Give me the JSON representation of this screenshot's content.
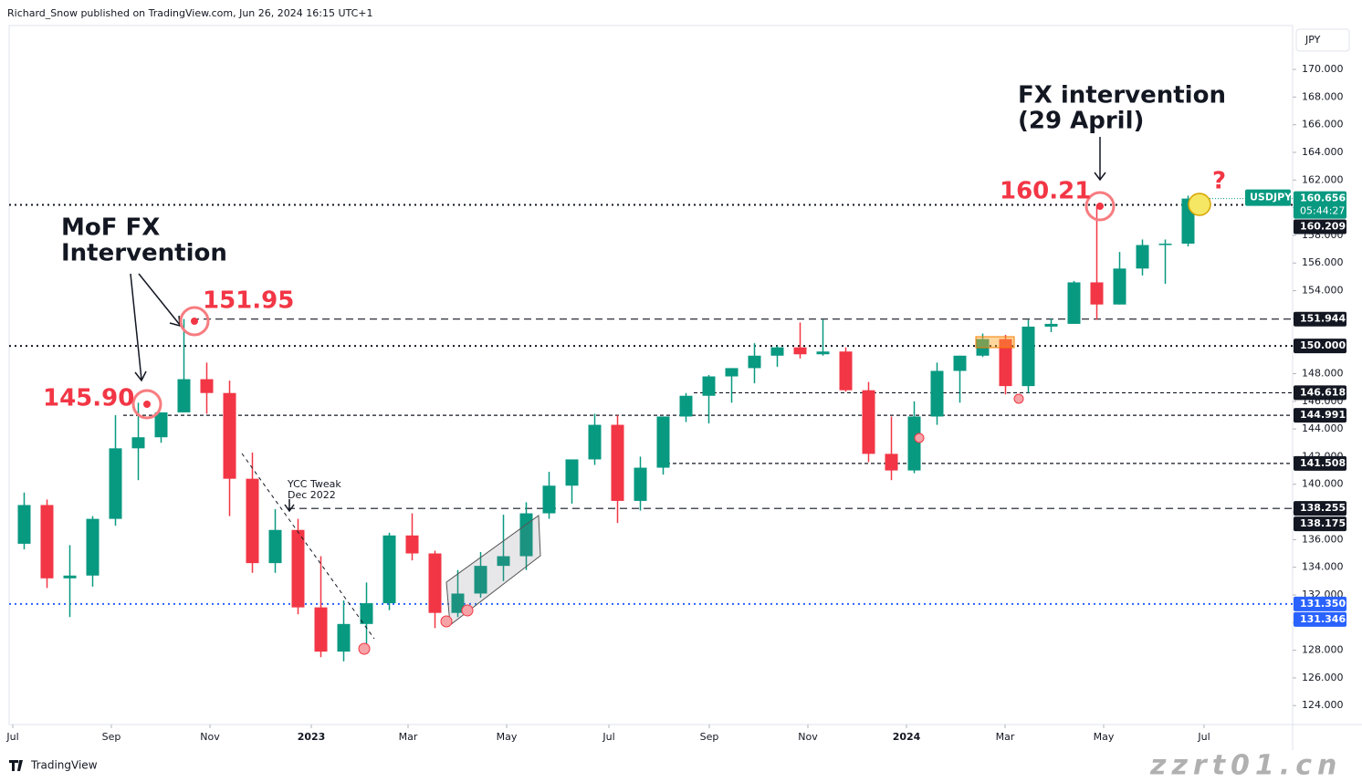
{
  "header": "Richard_Snow published on TradingView.com, Jun 26, 2024 16:15 UTC+1",
  "currency": "JPY",
  "footer_brand": "TradingView",
  "watermark": "zzrt01.cn",
  "chart_data": {
    "type": "candlestick",
    "symbol": "USDJPY",
    "up_color": "#089981",
    "down_color": "#f23645",
    "open": [
      135.7,
      138.5,
      133.2,
      133.4,
      137.5,
      142.6,
      143.4,
      145.2,
      147.6,
      146.6,
      140.4,
      134.3,
      136.7,
      131.1,
      127.9,
      129.9,
      131.4,
      136.3,
      135.0,
      130.7,
      132.1,
      134.1,
      134.8,
      137.9,
      139.9,
      141.8,
      144.3,
      138.8,
      141.2,
      144.9,
      146.4,
      147.8,
      148.4,
      149.3,
      149.9,
      149.4,
      149.6,
      146.8,
      142.2,
      141.0,
      144.9,
      148.2,
      149.3,
      150.5,
      147.1,
      151.4,
      151.6,
      154.6,
      153.0,
      155.6,
      157.3,
      157.4
    ],
    "high": [
      139.4,
      138.9,
      135.6,
      137.7,
      145.0,
      145.9,
      145.0,
      151.95,
      148.8,
      147.5,
      142.3,
      138.2,
      137.5,
      134.8,
      131.6,
      132.9,
      136.5,
      137.9,
      135.2,
      133.8,
      135.1,
      137.8,
      138.7,
      140.9,
      141.5,
      145.1,
      145.0,
      142.0,
      144.9,
      146.6,
      147.9,
      148.4,
      150.2,
      150.0,
      151.7,
      151.9,
      149.9,
      147.4,
      144.9,
      146.0,
      148.8,
      149.3,
      150.9,
      150.8,
      151.9,
      151.97,
      154.7,
      160.21,
      156.8,
      157.7,
      157.7,
      160.87
    ],
    "low": [
      135.3,
      132.5,
      130.4,
      132.6,
      137.0,
      140.3,
      143.0,
      145.2,
      145.1,
      137.7,
      133.6,
      133.6,
      130.6,
      127.5,
      127.2,
      128.1,
      130.9,
      134.5,
      129.6,
      130.4,
      131.8,
      133.0,
      133.8,
      137.5,
      138.6,
      141.4,
      137.2,
      138.1,
      140.7,
      144.5,
      144.4,
      145.9,
      147.3,
      148.5,
      149.1,
      149.3,
      146.7,
      141.6,
      140.3,
      140.8,
      144.3,
      145.9,
      149.2,
      146.5,
      146.6,
      151.0,
      151.6,
      151.9,
      153.0,
      155.1,
      154.5,
      157.2
    ],
    "close": [
      138.5,
      133.2,
      133.4,
      137.5,
      142.6,
      143.4,
      145.2,
      147.6,
      146.6,
      140.4,
      134.3,
      136.7,
      131.1,
      127.9,
      129.9,
      131.4,
      136.3,
      135.0,
      130.7,
      132.1,
      134.1,
      134.8,
      137.9,
      139.9,
      141.8,
      144.3,
      138.8,
      141.2,
      144.9,
      146.4,
      147.8,
      148.4,
      149.3,
      149.9,
      149.4,
      149.6,
      146.8,
      142.2,
      141.0,
      144.9,
      148.2,
      149.3,
      150.5,
      147.1,
      151.4,
      151.6,
      154.6,
      153.0,
      155.6,
      157.3,
      157.4,
      160.66
    ],
    "xlim": [
      -0.16,
      56.08
    ],
    "xticks": [
      {
        "value": 0,
        "label": "Jul"
      },
      {
        "value": 4.32,
        "label": "Sep"
      },
      {
        "value": 8.64,
        "label": "Nov"
      },
      {
        "value": 13.08,
        "label": "2023"
      },
      {
        "value": 17.32,
        "label": "Mar"
      },
      {
        "value": 21.64,
        "label": "May"
      },
      {
        "value": 26.12,
        "label": "Jul"
      },
      {
        "value": 30.52,
        "label": "Sep"
      },
      {
        "value": 34.84,
        "label": "Nov"
      },
      {
        "value": 39.16,
        "label": "2024"
      },
      {
        "value": 43.48,
        "label": "Mar"
      },
      {
        "value": 47.8,
        "label": "May"
      },
      {
        "value": 52.2,
        "label": "Jul"
      }
    ],
    "ylim": [
      122.63,
      173.17
    ],
    "yticks": [
      {
        "value": 124,
        "label": "124.000"
      },
      {
        "value": 126,
        "label": "126.000"
      },
      {
        "value": 128,
        "label": "128.000"
      },
      {
        "value": 130,
        "label": "130.000"
      },
      {
        "value": 132,
        "label": "132.000"
      },
      {
        "value": 134,
        "label": "134.000"
      },
      {
        "value": 136,
        "label": "136.000"
      },
      {
        "value": 138,
        "label": "138.000"
      },
      {
        "value": 140,
        "label": "140.000"
      },
      {
        "value": 142,
        "label": "142.000"
      },
      {
        "value": 144,
        "label": "144.000"
      },
      {
        "value": 146,
        "label": "146.000"
      },
      {
        "value": 148,
        "label": "148.000"
      },
      {
        "value": 150,
        "label": "150.000"
      },
      {
        "value": 152,
        "label": "152.000"
      },
      {
        "value": 154,
        "label": "154.000"
      },
      {
        "value": 156,
        "label": "156.000"
      },
      {
        "value": 158,
        "label": "158.000"
      },
      {
        "value": 160,
        "label": "160.000"
      },
      {
        "value": 162,
        "label": "162.000"
      },
      {
        "value": 164,
        "label": "164.000"
      },
      {
        "value": 166,
        "label": "166.000"
      },
      {
        "value": 168,
        "label": "168.000"
      },
      {
        "value": 170,
        "label": "170.000"
      }
    ],
    "last_price": {
      "value": 160.656,
      "label": "160.656"
    },
    "countdown": "05:44:27",
    "levels": [
      {
        "value": 160.209,
        "label": "160.209",
        "style": "dotted",
        "color": "#131722"
      },
      {
        "value": 151.944,
        "label": "151.944",
        "style": "dashed",
        "color": "#131722"
      },
      {
        "value": 150.0,
        "label": "150.000",
        "style": "dotted",
        "color": "#131722"
      },
      {
        "value": 146.618,
        "label": "146.618",
        "style": "dashed-fine",
        "color": "#131722"
      },
      {
        "value": 144.991,
        "label": "144.991",
        "style": "dashed-fine",
        "color": "#131722"
      },
      {
        "value": 141.508,
        "label": "141.508",
        "style": "dashed-fine",
        "color": "#131722"
      },
      {
        "value": 138.255,
        "label": "138.255",
        "style": "dashed",
        "color": "#131722"
      },
      {
        "value": 138.175,
        "label": "138.175",
        "style": "none",
        "color": "#131722"
      },
      {
        "value": 131.35,
        "label": "131.350",
        "style": "dotted",
        "color": "#2962ff"
      },
      {
        "value": 131.346,
        "label": "131.346",
        "style": "none",
        "color": "#2962ff"
      }
    ],
    "annotations": [
      "MoF FX",
      "Intervention",
      "151.95",
      "145.90",
      "160.21",
      "FX intervention",
      "(29 April)",
      "?",
      "YCC Tweak",
      "Dec 2022"
    ]
  }
}
